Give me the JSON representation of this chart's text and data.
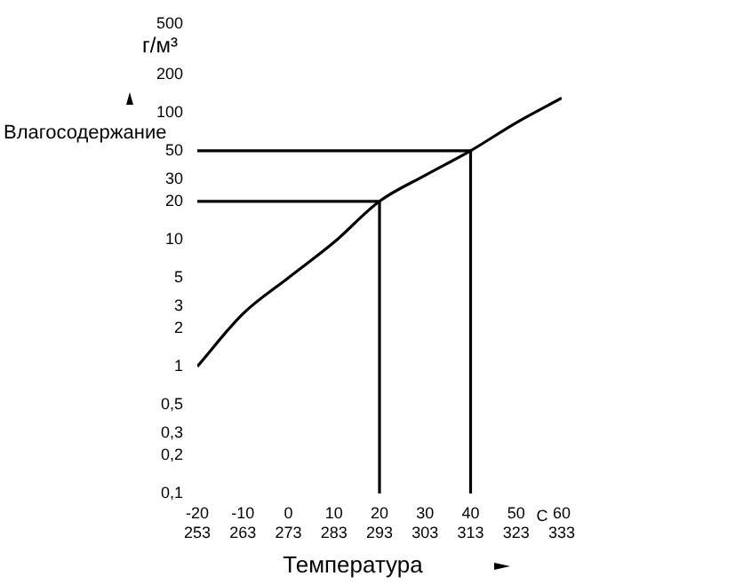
{
  "chart_data": {
    "type": "line",
    "xlabel": "Температура",
    "ylabel": "Влагосодержание",
    "annotations": [
      "г/м³",
      "C"
    ],
    "log": "y",
    "grid": false,
    "legend": false,
    "marker": "none",
    "line_style": "solid",
    "xlim": [
      -20,
      60
    ],
    "xticks": [
      -20,
      -10,
      0,
      10,
      20,
      30,
      40,
      50,
      60
    ],
    "x2lim": [
      253,
      333
    ],
    "x2ticks": [
      253,
      263,
      273,
      283,
      293,
      303,
      313,
      323,
      333
    ],
    "ylim": [
      0.1,
      500
    ],
    "yticks": [
      {
        "value": 0.1,
        "label": "0,1"
      },
      {
        "value": 0.2,
        "label": "0,2"
      },
      {
        "value": 0.3,
        "label": "0,3"
      },
      {
        "value": 0.5,
        "label": "0,5"
      },
      1,
      2,
      3,
      5,
      10,
      20,
      30,
      50,
      100,
      200,
      500
    ],
    "series": [
      {
        "color": "#000000",
        "x": [
          -20,
          -10,
          0,
          10,
          20,
          30,
          40,
          50,
          60
        ],
        "values": [
          1,
          2.6,
          5,
          9.5,
          20,
          32,
          50,
          83,
          130
        ]
      },
      {
        "color": "#000000",
        "x": [
          -20,
          20,
          20
        ],
        "values": [
          20,
          20,
          0.1
        ]
      },
      {
        "color": "#000000",
        "x": [
          -20,
          40,
          40
        ],
        "values": [
          50,
          50,
          0.1
        ]
      }
    ]
  }
}
